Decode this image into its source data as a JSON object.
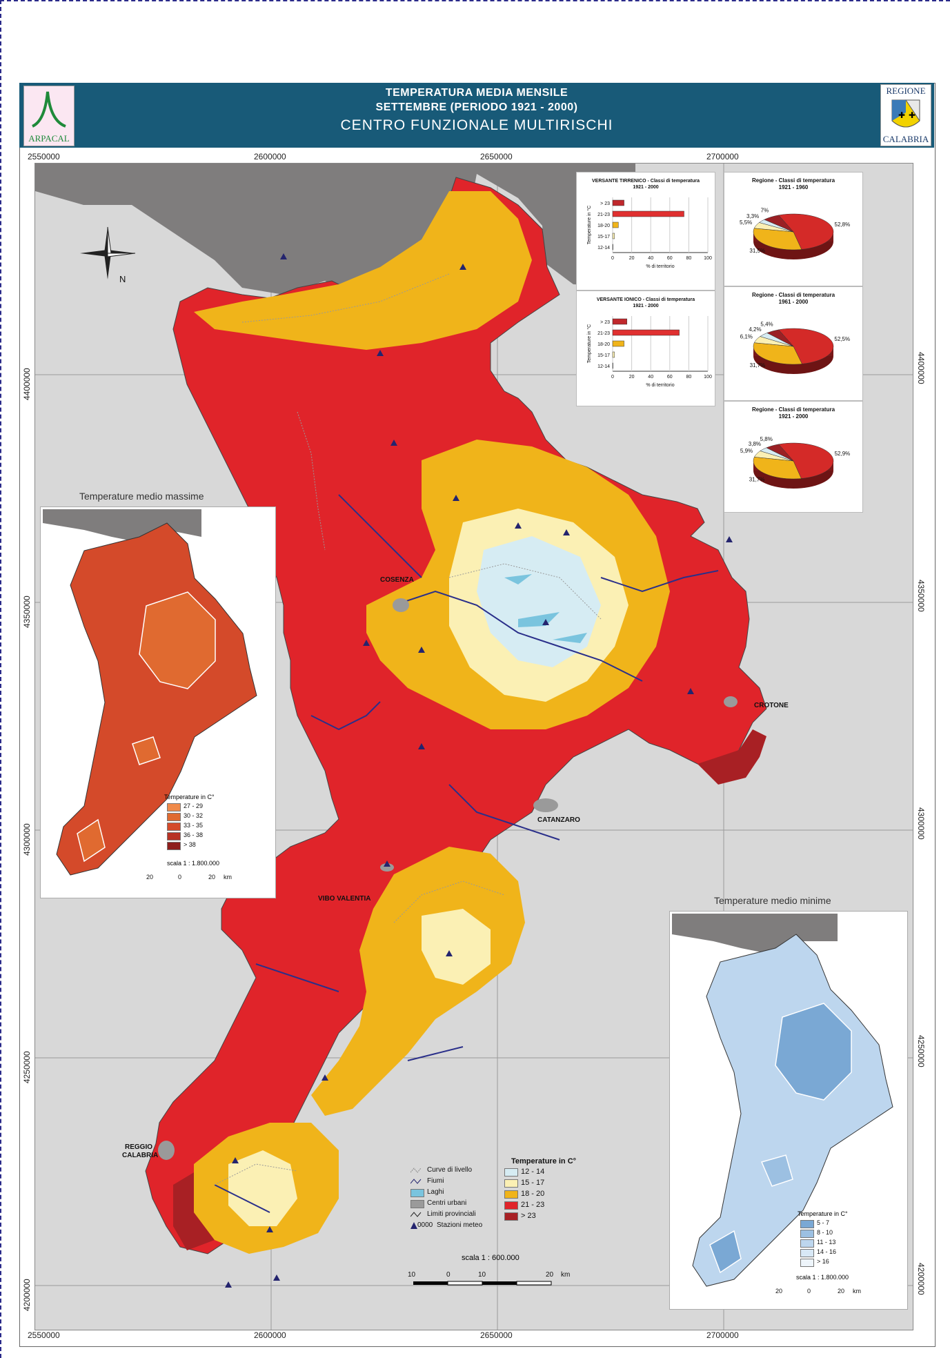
{
  "header": {
    "line1": "TEMPERATURA MEDIA MENSILE",
    "line2": "SETTEMBRE (PERIODO 1921 - 2000)",
    "line3": "CENTRO FUNZIONALE MULTIRISCHI",
    "logo_left_text": "ARPACAL",
    "logo_right_top": "REGIONE",
    "logo_right_bottom": "CALABRIA"
  },
  "coords": {
    "x_labels": [
      "2550000",
      "2600000",
      "2650000",
      "2700000"
    ],
    "y_labels": [
      "4400000",
      "4350000",
      "4300000",
      "4250000",
      "4200000"
    ]
  },
  "compass": {
    "north_label": "N"
  },
  "cities": {
    "cosenza": "COSENZA",
    "crotone": "CROTONE",
    "catanzaro": "CATANZARO",
    "vibo": "VIBO VALENTIA",
    "reggio1": "REGGIO",
    "reggio2": "CALABRIA"
  },
  "legend": {
    "title": "Temperature in C°",
    "symbols": [
      "Curve di livello",
      "Fiumi",
      "Laghi",
      "Centri urbani",
      "Limiti provinciali",
      "Stazioni meteo"
    ],
    "station_code": "0000",
    "classes": [
      {
        "label": "12 - 14",
        "color": "#d6ecf3"
      },
      {
        "label": "15 - 17",
        "color": "#fbf0b4"
      },
      {
        "label": "18 - 20",
        "color": "#f0b41a"
      },
      {
        "label": "21 - 23",
        "color": "#e0242a"
      },
      {
        "label": "> 23",
        "color": "#a82024"
      }
    ],
    "scale": "scala 1 : 600.000",
    "scale_ticks": [
      "10",
      "0",
      "10",
      "20",
      "km"
    ]
  },
  "inset_max": {
    "title": "Temperature medio massime",
    "legend_title": "Temperature in C°",
    "classes": [
      {
        "label": "27 - 29",
        "color": "#f08a4a"
      },
      {
        "label": "30 - 32",
        "color": "#e06a30"
      },
      {
        "label": "33 - 35",
        "color": "#d44a2a"
      },
      {
        "label": "36 - 38",
        "color": "#b83224"
      },
      {
        "label": "> 38",
        "color": "#8e1e1c"
      }
    ],
    "scale": "scala 1 : 1.800.000",
    "scale_ticks": [
      "20",
      "0",
      "20",
      "km"
    ]
  },
  "inset_min": {
    "title": "Temperature medio minime",
    "legend_title": "Temperature in C°",
    "classes": [
      {
        "label": "5 - 7",
        "color": "#7aa8d4"
      },
      {
        "label": "8 - 10",
        "color": "#9cc0e2"
      },
      {
        "label": "11 - 13",
        "color": "#bdd6ee"
      },
      {
        "label": "14 - 16",
        "color": "#d8e8f6"
      },
      {
        "label": "> 16",
        "color": "#eef5fb"
      }
    ],
    "scale": "scala 1 : 1.800.000",
    "scale_ticks": [
      "20",
      "0",
      "20",
      "km"
    ]
  },
  "chart_data": [
    {
      "type": "bar",
      "title": "VERSANTE TIRRENICO - Classi di temperatura",
      "subtitle": "1921 - 2000",
      "categories": [
        "> 23",
        "21-23",
        "18-20",
        "15-17",
        "12-14"
      ],
      "values": [
        12,
        75,
        6,
        2,
        0
      ],
      "xlabel": "% di territorio",
      "ylabel": "Temperature in °C",
      "xlim": [
        0,
        100
      ],
      "xticks": [
        "0",
        "20",
        "40",
        "60",
        "80",
        "100"
      ],
      "colors": [
        "#c0282c",
        "#e03030",
        "#f0b41a",
        "#fbf0b4",
        "#d6ecf3"
      ]
    },
    {
      "type": "bar",
      "title": "VERSANTE IONICO - Classi di temperatura",
      "subtitle": "1921 - 2000",
      "categories": [
        "> 23",
        "21-23",
        "18-20",
        "15-17",
        "12-14"
      ],
      "values": [
        15,
        70,
        12,
        2,
        0
      ],
      "xlabel": "% di territorio",
      "ylabel": "Temperature in °C",
      "xlim": [
        0,
        100
      ],
      "xticks": [
        "0",
        "20",
        "40",
        "60",
        "80",
        "100"
      ],
      "colors": [
        "#c0282c",
        "#e03030",
        "#f0b41a",
        "#fbf0b4",
        "#d6ecf3"
      ]
    },
    {
      "type": "pie",
      "title": "Regione - Classi di temperatura",
      "subtitle": "1921 - 1960",
      "labels": [
        "52,8%",
        "31,5%",
        "5,5%",
        "3,3%",
        "7%"
      ],
      "values": [
        52.8,
        31.5,
        5.5,
        3.3,
        7
      ],
      "colors": [
        "#d42a28",
        "#f0b41a",
        "#fbf0b4",
        "#d6ecf3",
        "#9a2024"
      ]
    },
    {
      "type": "pie",
      "title": "Regione - Classi di temperatura",
      "subtitle": "1961 - 2000",
      "labels": [
        "52,5%",
        "31,7%",
        "6,1%",
        "4,2%",
        "5,4%"
      ],
      "values": [
        52.5,
        31.7,
        6.1,
        4.2,
        5.4
      ],
      "colors": [
        "#d42a28",
        "#f0b41a",
        "#fbf0b4",
        "#d6ecf3",
        "#9a2024"
      ]
    },
    {
      "type": "pie",
      "title": "Regione - Classi di temperatura",
      "subtitle": "1921 - 2000",
      "labels": [
        "52,9%",
        "31,7%",
        "5,9%",
        "3,8%",
        "5,8%"
      ],
      "values": [
        52.9,
        31.7,
        5.9,
        3.8,
        5.8
      ],
      "colors": [
        "#d42a28",
        "#f0b41a",
        "#fbf0b4",
        "#d6ecf3",
        "#9a2024"
      ]
    }
  ]
}
